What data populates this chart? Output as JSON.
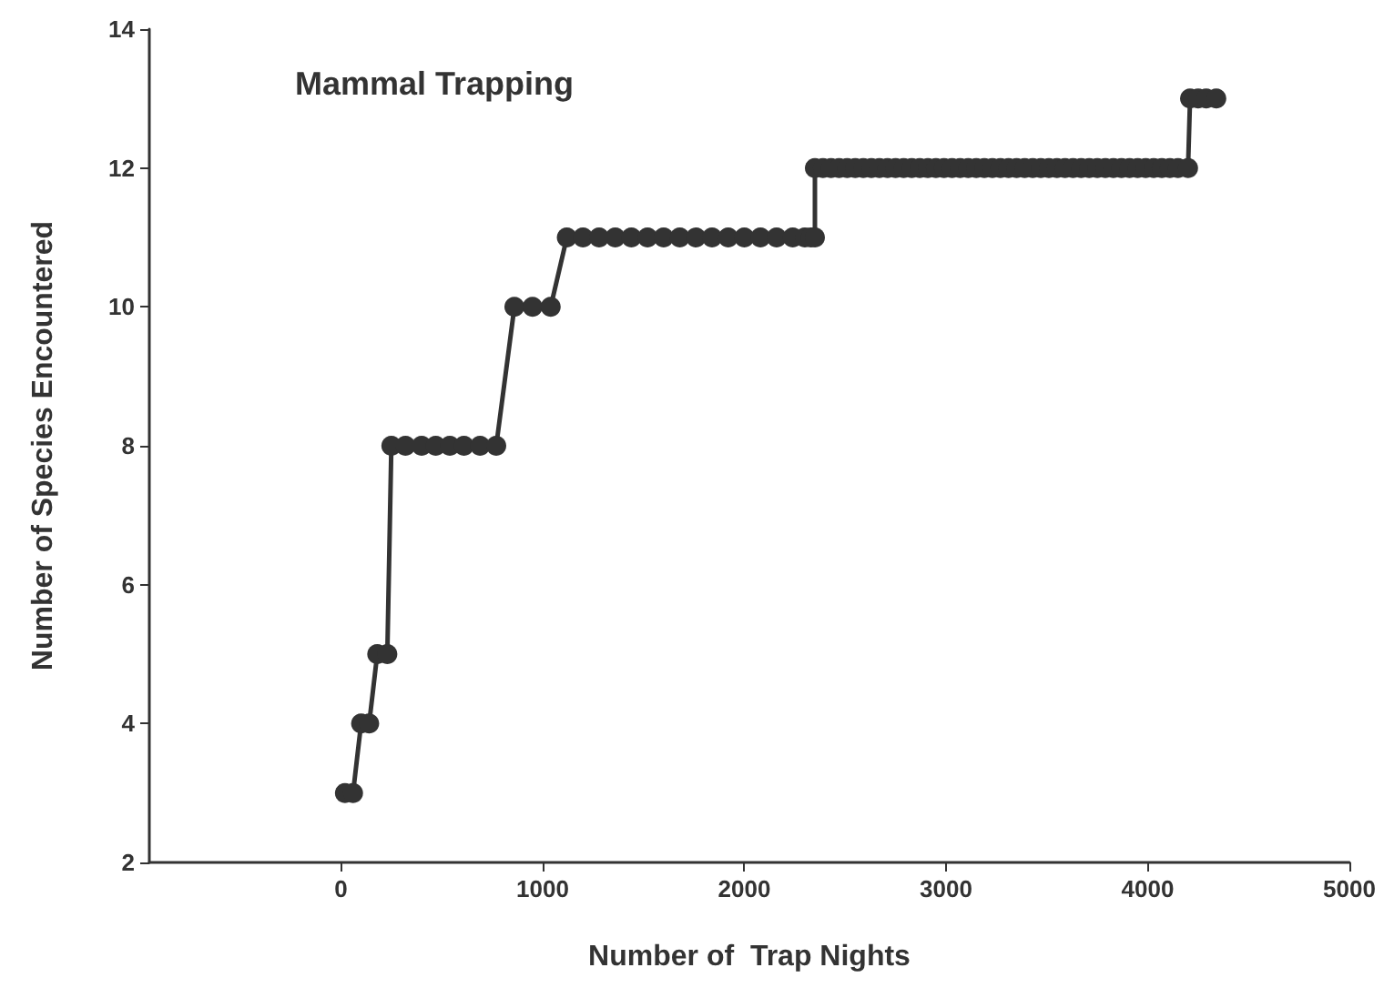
{
  "chart_data": {
    "type": "line",
    "title": "Mammal Trapping",
    "xlabel": "Number of  Trap Nights",
    "ylabel": "Number of Species Encountered",
    "series": [
      {
        "color": "#333333",
        "x": [
          20,
          60,
          100,
          140,
          180,
          230,
          250,
          320,
          400,
          470,
          540,
          610,
          690,
          770,
          860,
          950,
          1040,
          1120,
          1200,
          1280,
          1360,
          1440,
          1520,
          1600,
          1680,
          1760,
          1840,
          1920,
          2000,
          2080,
          2160,
          2240,
          2300,
          2330,
          2350,
          2350,
          2390,
          2430,
          2470,
          2510,
          2550,
          2590,
          2630,
          2670,
          2710,
          2750,
          2790,
          2830,
          2870,
          2910,
          2950,
          2990,
          3030,
          3070,
          3110,
          3150,
          3190,
          3230,
          3270,
          3310,
          3350,
          3390,
          3430,
          3470,
          3510,
          3550,
          3590,
          3630,
          3670,
          3710,
          3750,
          3790,
          3830,
          3870,
          3910,
          3950,
          3990,
          4030,
          4070,
          4110,
          4150,
          4200,
          4210,
          4250,
          4290,
          4340
        ],
        "values": [
          3,
          3,
          4,
          4,
          5,
          5,
          8,
          8,
          8,
          8,
          8,
          8,
          8,
          8,
          10,
          10,
          10,
          11,
          11,
          11,
          11,
          11,
          11,
          11,
          11,
          11,
          11,
          11,
          11,
          11,
          11,
          11,
          11,
          11,
          11,
          12,
          12,
          12,
          12,
          12,
          12,
          12,
          12,
          12,
          12,
          12,
          12,
          12,
          12,
          12,
          12,
          12,
          12,
          12,
          12,
          12,
          12,
          12,
          12,
          12,
          12,
          12,
          12,
          12,
          12,
          12,
          12,
          12,
          12,
          12,
          12,
          12,
          12,
          12,
          12,
          12,
          12,
          12,
          12,
          12,
          12,
          12,
          13,
          13,
          13,
          13
        ]
      }
    ],
    "xlim": [
      -950,
      5000
    ],
    "xticks": [
      0,
      1000,
      2000,
      3000,
      4000,
      5000
    ],
    "ylim": [
      2,
      14
    ],
    "yticks": [
      2,
      4,
      6,
      8,
      10,
      12,
      14
    ],
    "grid": false,
    "marker": "circle",
    "line_style": "solid"
  }
}
